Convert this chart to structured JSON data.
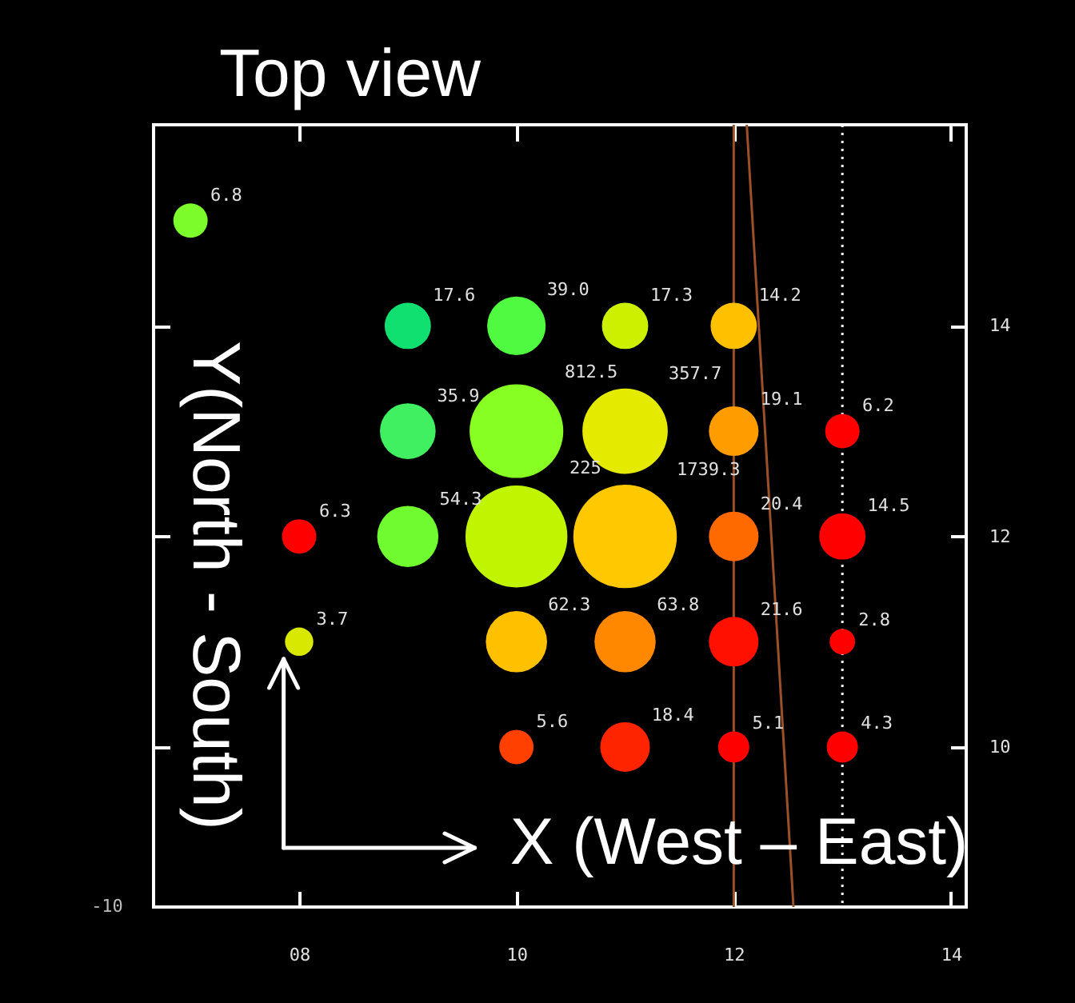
{
  "chart_data": {
    "type": "bubble",
    "title": "Top view",
    "xlabel": "X (West – East)",
    "ylabel": "Y(North - South)",
    "xlim": [
      6.66,
      14.14
    ],
    "ylim": [
      8.48,
      15.91
    ],
    "xticks": [
      {
        "value": 8,
        "label": "08"
      },
      10,
      12,
      14
    ],
    "yticks": [
      10,
      12,
      14
    ],
    "series": [
      {
        "x": [
          7,
          9,
          10,
          11,
          12,
          9,
          10,
          11,
          12,
          13,
          8,
          9,
          10,
          11,
          12,
          13,
          8,
          10,
          11,
          12,
          13,
          10,
          11,
          12,
          13
        ],
        "values": [
          15,
          14,
          14,
          14,
          14,
          13,
          13,
          13,
          13,
          13,
          12,
          12,
          12,
          12,
          12,
          12,
          11,
          11,
          11,
          11,
          11,
          10,
          10,
          10,
          10
        ],
        "sizes": [
          0.11,
          0.2,
          0.32,
          0.2,
          0.2,
          0.29,
          0.82,
          0.68,
          0.23,
          0.11,
          0.11,
          0.35,
          0.97,
          1,
          0.23,
          0.2,
          0.075,
          0.35,
          0.35,
          0.23,
          0.061,
          0.11,
          0.23,
          0.091,
          0.091
        ],
        "colors": [
          "#7cfc2a",
          "#10e070",
          "#50fa40",
          "#ccf000",
          "#ffc000",
          "#40f060",
          "#88ff22",
          "#e4ea00",
          "#ff9c00",
          "#ff0000",
          "#ff0000",
          "#70fa30",
          "#c0f400",
          "#ffc800",
          "#ff6a00",
          "#ff0000",
          "#d8e800",
          "#ffc000",
          "#ff8800",
          "#ff1000",
          "#ff0000",
          "#ff4000",
          "#ff2400",
          "#ff0000",
          "#ff0000"
        ]
      },
      {
        "type": "line",
        "x": [
          12.12,
          12.55
        ],
        "values": [
          15.91,
          8.48
        ],
        "color": "#9c5028"
      }
    ],
    "ref_lines": [
      {
        "axis": "x",
        "value": 12,
        "color": "#9c5028",
        "line_style": "solid"
      },
      {
        "axis": "x",
        "value": 13,
        "color": "#ffffff",
        "line_style": "dotted"
      }
    ],
    "annotations": [
      {
        "text": "6.8",
        "x": 7,
        "y": 15
      },
      {
        "text": "17.6",
        "x": 9,
        "y": 14
      },
      {
        "text": "39.0",
        "x": 10,
        "y": 14
      },
      {
        "text": "17.3",
        "x": 11,
        "y": 14
      },
      {
        "text": "14.2",
        "x": 12,
        "y": 14
      },
      {
        "text": "35.9",
        "x": 9,
        "y": 13
      },
      "812.5",
      "357.7",
      {
        "text": "19.1",
        "x": 12,
        "y": 13
      },
      {
        "text": "6.2",
        "x": 13,
        "y": 13
      },
      {
        "text": "6.3",
        "x": 8,
        "y": 12
      },
      {
        "text": "54.3",
        "x": 9,
        "y": 12
      },
      "225",
      "1739.3",
      {
        "text": "20.4",
        "x": 12,
        "y": 12
      },
      {
        "text": "14.5",
        "x": 13,
        "y": 12
      },
      {
        "text": "3.7",
        "x": 8,
        "y": 11
      },
      {
        "text": "62.3",
        "x": 10,
        "y": 11
      },
      {
        "text": "63.8",
        "x": 11,
        "y": 11
      },
      {
        "text": "21.6",
        "x": 12,
        "y": 11
      },
      {
        "text": "2.8",
        "x": 13,
        "y": 11
      },
      {
        "text": "5.6",
        "x": 10,
        "y": 10
      },
      {
        "text": "18.4",
        "x": 11,
        "y": 10
      },
      {
        "text": "5.1",
        "x": 12,
        "y": 10
      },
      {
        "text": "4.3",
        "x": 13,
        "y": 10
      },
      "-10"
    ]
  }
}
